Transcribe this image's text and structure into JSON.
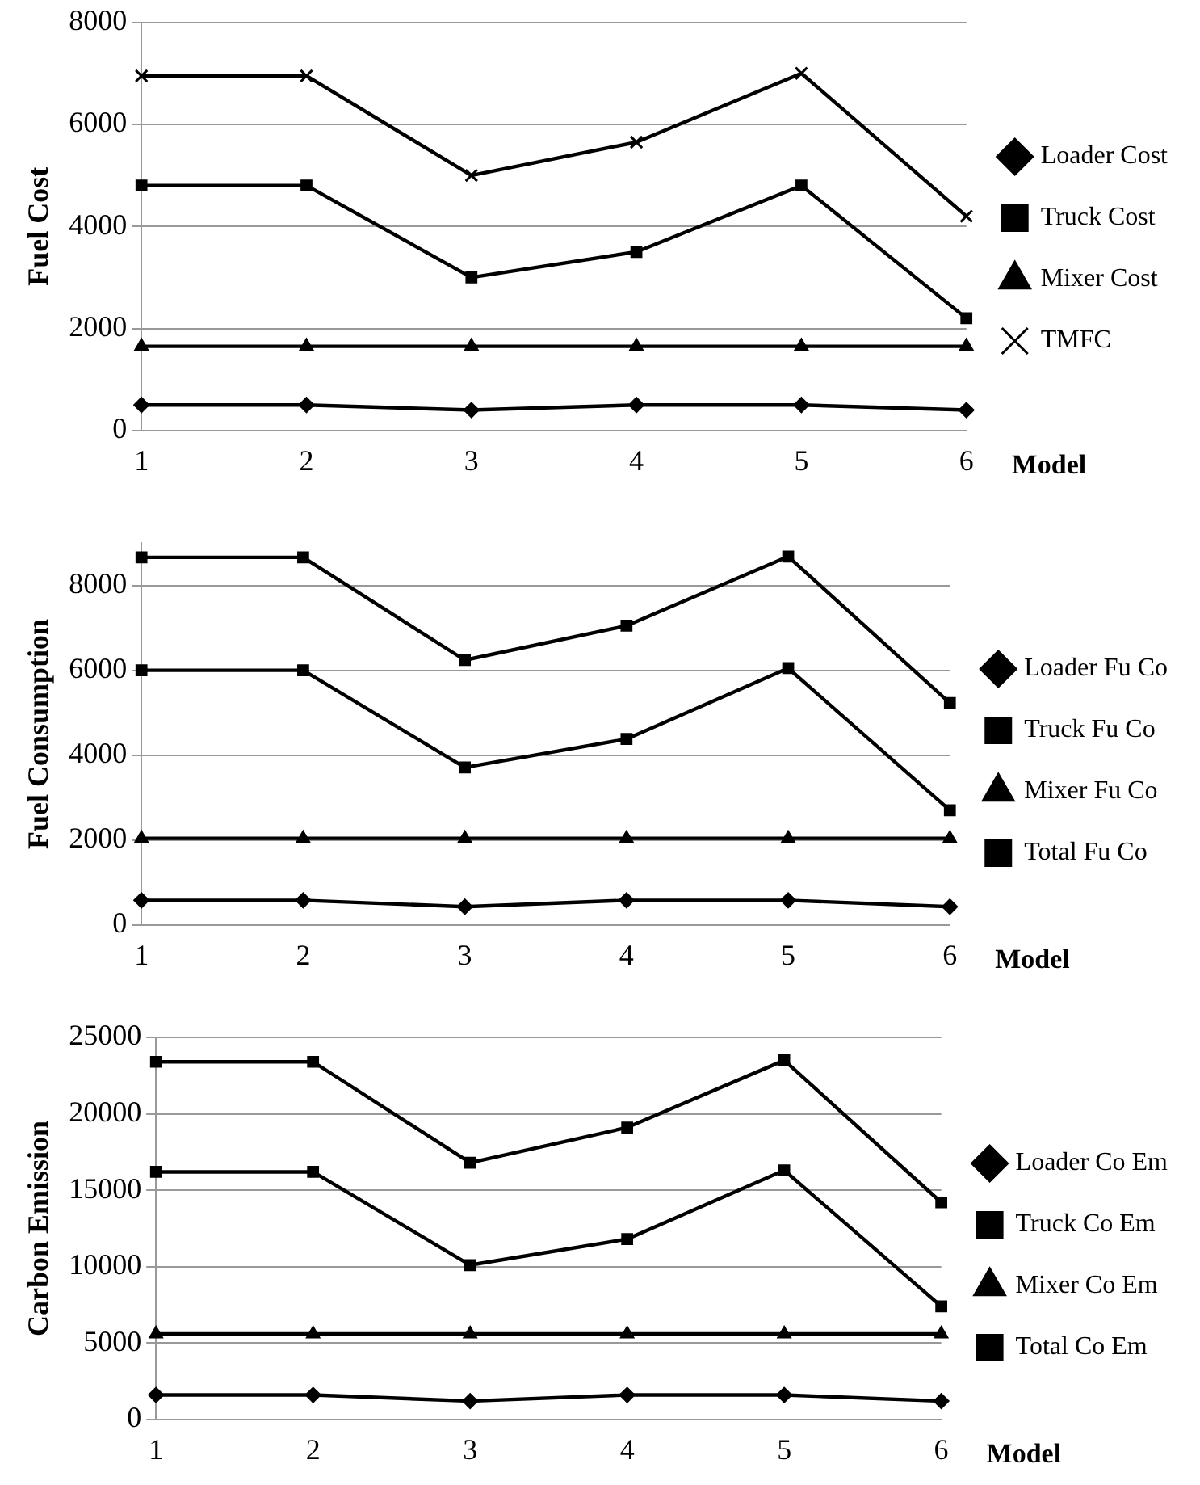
{
  "chart_data": [
    {
      "type": "line",
      "ylabel": "Fuel Cost",
      "xlabel": "Model",
      "categories": [
        "1",
        "2",
        "3",
        "4",
        "5",
        "6"
      ],
      "ylim": [
        0,
        8000
      ],
      "yticks": [
        0,
        2000,
        4000,
        6000,
        8000
      ],
      "grid": "y",
      "legend": "right",
      "series": [
        {
          "name": "Loader Cost",
          "color": "#000000",
          "marker": "diamond",
          "values": [
            500,
            500,
            400,
            500,
            500,
            400
          ]
        },
        {
          "name": "Truck Cost",
          "color": "#000000",
          "marker": "square",
          "values": [
            4800,
            4800,
            3000,
            3500,
            4800,
            2200
          ]
        },
        {
          "name": "Mixer Cost",
          "color": "#000000",
          "marker": "triangle",
          "values": [
            1650,
            1650,
            1650,
            1650,
            1650,
            1650
          ]
        },
        {
          "name": "TMFC",
          "color": "#000000",
          "marker": "cross",
          "values": [
            6950,
            6950,
            5000,
            5650,
            7000,
            4200
          ]
        }
      ]
    },
    {
      "type": "line",
      "ylabel": "Fuel Consumption",
      "xlabel": "Model",
      "categories": [
        "1",
        "2",
        "3",
        "4",
        "5",
        "6"
      ],
      "ylim": [
        0,
        9000
      ],
      "yticks": [
        0,
        2000,
        4000,
        6000,
        8000
      ],
      "grid": "y",
      "legend": "right",
      "series": [
        {
          "name": "Loader Fu Co",
          "color": "#000000",
          "marker": "diamond",
          "values": [
            580,
            580,
            430,
            580,
            580,
            430
          ]
        },
        {
          "name": "Truck Fu Co",
          "color": "#000000",
          "marker": "square",
          "values": [
            6000,
            6000,
            3710,
            4380,
            6050,
            2700
          ]
        },
        {
          "name": "Mixer Fu Co",
          "color": "#000000",
          "marker": "triangle",
          "values": [
            2040,
            2040,
            2040,
            2040,
            2040,
            2040
          ]
        },
        {
          "name": "Total Fu Co",
          "color": "#000000",
          "marker": "square",
          "values": [
            8660,
            8660,
            6240,
            7050,
            8680,
            5230
          ]
        }
      ]
    },
    {
      "type": "line",
      "ylabel": "Carbon Emission",
      "xlabel": "Model",
      "categories": [
        "1",
        "2",
        "3",
        "4",
        "5",
        "6"
      ],
      "ylim": [
        0,
        25000
      ],
      "yticks": [
        0,
        5000,
        10000,
        15000,
        20000,
        25000
      ],
      "grid": "y",
      "legend": "right",
      "series": [
        {
          "name": "Loader Co Em",
          "color": "#000000",
          "marker": "diamond",
          "values": [
            1600,
            1600,
            1200,
            1600,
            1600,
            1200
          ]
        },
        {
          "name": "Truck Co Em",
          "color": "#000000",
          "marker": "square",
          "values": [
            16200,
            16200,
            10100,
            11800,
            16300,
            7400
          ]
        },
        {
          "name": "Mixer Co Em",
          "color": "#000000",
          "marker": "triangle",
          "values": [
            5600,
            5600,
            5600,
            5600,
            5600,
            5600
          ]
        },
        {
          "name": "Total Co Em",
          "color": "#000000",
          "marker": "square",
          "values": [
            23400,
            23400,
            16800,
            19100,
            23500,
            14200
          ]
        }
      ]
    }
  ]
}
